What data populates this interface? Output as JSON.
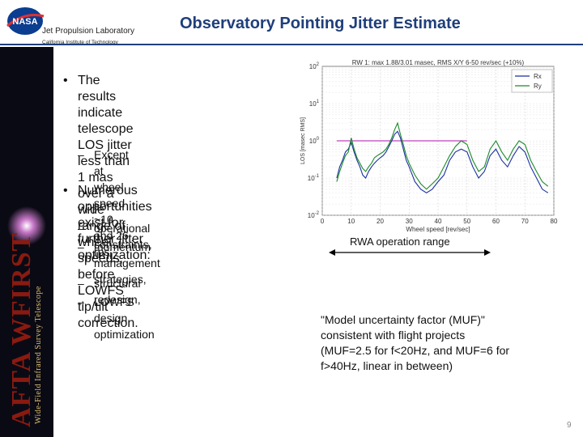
{
  "header": {
    "org_name": "Jet Propulsion Laboratory",
    "institute": "California Institute of Technology",
    "logo_text": "NASA",
    "title": "Observatory Pointing Jitter Estimate"
  },
  "sidebar": {
    "brand_main": "AFTA WFIRST",
    "brand_sub": "Wide-Field Infrared Survey Telescope"
  },
  "bullets": [
    {
      "lines": [
        "The results indicate telescope",
        "LOS jitter less than 1 mas over a",
        "wide range of wheel speeds,",
        "before LOWFS tip/tilt correction."
      ],
      "subs": [
        {
          "lines": [
            "Except at wheel speed  ~10 and 26",
            "rps"
          ]
        }
      ]
    },
    {
      "lines": [
        "Numerous opportunities exist for",
        "further jitter optimization:"
      ],
      "subs": [
        {
          "lines": [
            "operational constraints,"
          ]
        },
        {
          "lines": [
            "momentum management",
            "strategies,"
          ]
        },
        {
          "lines": [
            "structural redesign,"
          ]
        },
        {
          "lines": [
            "LOWFS design optimization"
          ]
        }
      ]
    }
  ],
  "chart_data": {
    "type": "line",
    "title": "RW 1: max 1.88/3.01 masec, RMS X/Y 6-50 rev/sec (+10%)",
    "xlabel": "Wheel speed [rev/sec]",
    "ylabel": "LOS [masec RMS]",
    "xlim": [
      0,
      80
    ],
    "ylim_log10": [
      -2,
      2
    ],
    "log_y": true,
    "x_ticks": [
      0,
      10,
      20,
      30,
      40,
      50,
      60,
      70,
      80
    ],
    "y_tick_labels": [
      "10^2",
      "10^1",
      "10^0",
      "10^-1",
      "10^-2"
    ],
    "legend": [
      "Rx",
      "Ry"
    ],
    "legend_position": "top-right",
    "grid": true,
    "requirement_line": {
      "value": 1,
      "x_range": [
        5,
        50
      ]
    },
    "series": [
      {
        "name": "Rx",
        "color": "#1a2fa0",
        "x": [
          5,
          6,
          7,
          8,
          9,
          10,
          11,
          12,
          13,
          14,
          15,
          16,
          17,
          18,
          19,
          20,
          21,
          22,
          23,
          24,
          25,
          26,
          27,
          28,
          29,
          30,
          32,
          34,
          36,
          38,
          40,
          42,
          44,
          46,
          48,
          50,
          52,
          54,
          56,
          58,
          60,
          62,
          64,
          66,
          68,
          70,
          72,
          74,
          76,
          78
        ],
        "y": [
          0.1,
          0.2,
          0.3,
          0.5,
          0.6,
          0.9,
          0.5,
          0.3,
          0.2,
          0.12,
          0.1,
          0.15,
          0.2,
          0.25,
          0.3,
          0.35,
          0.4,
          0.5,
          0.7,
          1.0,
          1.5,
          1.8,
          1.2,
          0.6,
          0.3,
          0.2,
          0.08,
          0.05,
          0.04,
          0.05,
          0.08,
          0.12,
          0.3,
          0.5,
          0.6,
          0.5,
          0.2,
          0.1,
          0.15,
          0.4,
          0.6,
          0.3,
          0.2,
          0.4,
          0.7,
          0.5,
          0.2,
          0.1,
          0.05,
          0.04
        ]
      },
      {
        "name": "Ry",
        "color": "#1a8a2a",
        "x": [
          5,
          6,
          7,
          8,
          9,
          10,
          11,
          12,
          13,
          14,
          15,
          16,
          17,
          18,
          19,
          20,
          21,
          22,
          23,
          24,
          25,
          26,
          27,
          28,
          29,
          30,
          32,
          34,
          36,
          38,
          40,
          42,
          44,
          46,
          48,
          50,
          52,
          54,
          56,
          58,
          60,
          62,
          64,
          66,
          68,
          70,
          72,
          74,
          76,
          78
        ],
        "y": [
          0.08,
          0.15,
          0.25,
          0.4,
          0.5,
          1.2,
          0.6,
          0.35,
          0.25,
          0.18,
          0.15,
          0.2,
          0.25,
          0.35,
          0.4,
          0.45,
          0.5,
          0.6,
          0.8,
          1.2,
          2.0,
          3.0,
          1.5,
          0.8,
          0.4,
          0.25,
          0.12,
          0.07,
          0.05,
          0.07,
          0.1,
          0.2,
          0.4,
          0.7,
          1.0,
          0.8,
          0.3,
          0.15,
          0.2,
          0.6,
          1.0,
          0.5,
          0.3,
          0.6,
          1.0,
          0.8,
          0.3,
          0.15,
          0.08,
          0.06
        ]
      }
    ]
  },
  "range_label": "RWA operation range",
  "note_lines": [
    "\"Model uncertainty factor (MUF)\"",
    "consistent with flight projects",
    "(MUF=2.5 for f<20Hz, and MUF=6 for",
    "f>40Hz, linear in between)"
  ],
  "page_number": "9",
  "colors": {
    "title": "#1f3f7a",
    "rx": "#1a2fa0",
    "ry": "#1a8a2a",
    "requirement": "#c040c0"
  }
}
